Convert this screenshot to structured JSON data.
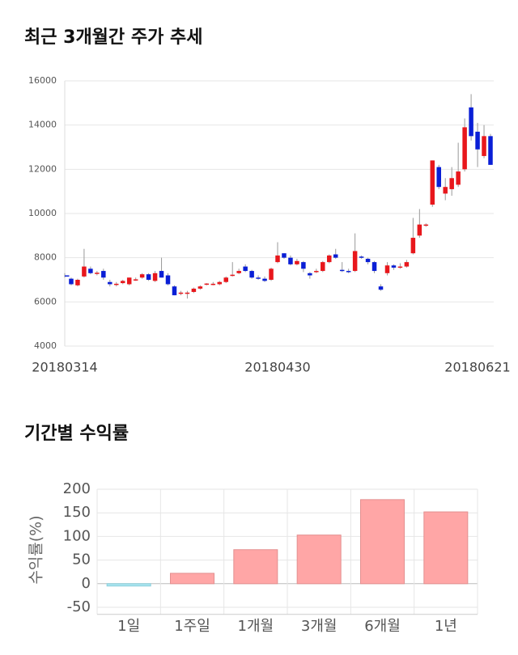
{
  "chart_data": [
    {
      "type": "candlestick",
      "title": "최근 3개월간 주가 추세",
      "categories": [
        "20180314",
        null,
        null,
        null,
        null,
        null,
        null,
        null,
        null,
        null,
        null,
        null,
        null,
        null,
        null,
        null,
        null,
        null,
        null,
        null,
        null,
        null,
        null,
        null,
        null,
        null,
        null,
        null,
        null,
        null,
        null,
        null,
        null,
        "20180430",
        null,
        null,
        null,
        null,
        null,
        null,
        null,
        null,
        null,
        null,
        null,
        null,
        null,
        null,
        null,
        null,
        null,
        null,
        null,
        null,
        null,
        null,
        null,
        null,
        null,
        null,
        null,
        null,
        null,
        null,
        null,
        null,
        "20180621"
      ],
      "open": [
        7200,
        7050,
        6750,
        7150,
        7500,
        7300,
        7400,
        6900,
        6800,
        6850,
        6800,
        7000,
        7100,
        7250,
        6950,
        7400,
        7200,
        6700,
        6400,
        6400,
        6450,
        6600,
        6800,
        6800,
        6800,
        6900,
        7200,
        7300,
        7600,
        7400,
        7100,
        7050,
        7000,
        7800,
        8200,
        8000,
        7700,
        7800,
        7300,
        7350,
        7400,
        7800,
        8150,
        7450,
        7400,
        7400,
        8050,
        7950,
        7800,
        6700,
        7300,
        7650,
        7550,
        7600,
        8200,
        9000,
        9450,
        10400,
        12100,
        10900,
        11100,
        11300,
        12000,
        14800,
        13700,
        12600,
        13500
      ],
      "high": [
        7300,
        7100,
        7050,
        8400,
        7600,
        7400,
        7500,
        7000,
        6900,
        7000,
        7100,
        7100,
        7300,
        7300,
        7400,
        8000,
        7300,
        6750,
        6500,
        6500,
        6650,
        6750,
        6850,
        6900,
        6950,
        7150,
        7800,
        7500,
        7700,
        7450,
        7200,
        7150,
        7550,
        8700,
        8200,
        8100,
        7950,
        7850,
        7350,
        7500,
        7850,
        8150,
        8400,
        7800,
        7500,
        9100,
        8100,
        8000,
        7850,
        6800,
        7800,
        7700,
        7750,
        7900,
        9800,
        10200,
        9550,
        12400,
        12200,
        11600,
        12100,
        13200,
        14300,
        15400,
        14100,
        14000,
        13600
      ],
      "low": [
        7100,
        6750,
        6700,
        7100,
        7250,
        7200,
        7000,
        6700,
        6700,
        6800,
        6750,
        6950,
        7050,
        6950,
        6900,
        7100,
        6750,
        6300,
        6300,
        6150,
        6400,
        6550,
        6750,
        6750,
        6750,
        6850,
        7150,
        7250,
        7350,
        7050,
        7000,
        6900,
        6950,
        7750,
        7950,
        7650,
        7650,
        7350,
        7050,
        7300,
        7350,
        7750,
        7950,
        7350,
        7300,
        7350,
        7950,
        7700,
        7300,
        6500,
        7200,
        7450,
        7500,
        7550,
        8150,
        8900,
        9400,
        10300,
        11100,
        10600,
        10800,
        11200,
        11900,
        13300,
        12100,
        12500,
        12200
      ],
      "close": [
        7150,
        6800,
        7000,
        7600,
        7300,
        7320,
        7100,
        6800,
        6820,
        6950,
        7100,
        7020,
        7250,
        7000,
        7300,
        7100,
        6800,
        6300,
        6420,
        6420,
        6600,
        6700,
        6830,
        6820,
        6900,
        7100,
        7230,
        7400,
        7400,
        7100,
        7080,
        6950,
        7500,
        8100,
        8000,
        7700,
        7850,
        7500,
        7200,
        7400,
        7800,
        8100,
        8000,
        7400,
        7380,
        8300,
        8000,
        7800,
        7400,
        6550,
        7650,
        7550,
        7600,
        7800,
        8900,
        9500,
        9500,
        12400,
        11200,
        11200,
        11600,
        11900,
        13900,
        13500,
        12900,
        13500,
        12200
      ],
      "up_color": "#e8171c",
      "down_color": "#0a1fd6",
      "ylim": [
        4000,
        16000
      ],
      "yticks": [
        4000,
        6000,
        8000,
        10000,
        12000,
        14000,
        16000
      ],
      "grid": true
    },
    {
      "type": "bar",
      "title": "기간별 수익률",
      "y_label": "수익률(%)",
      "categories": [
        "1일",
        "1주일",
        "1개월",
        "3개월",
        "6개월",
        "1년"
      ],
      "values": [
        -5,
        22,
        72,
        103,
        178,
        152
      ],
      "positive_color": "#ffa6a6",
      "negative_color": "#a9e5f0",
      "ylim": [
        -65,
        200
      ],
      "yticks": [
        -50,
        0,
        50,
        100,
        150,
        200
      ],
      "grid": true
    }
  ]
}
